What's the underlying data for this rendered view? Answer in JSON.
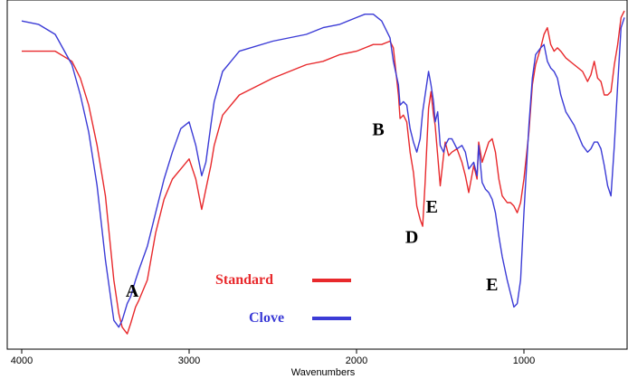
{
  "chart_data": {
    "type": "line",
    "title": "",
    "xlabel": "Wavenumbers",
    "ylabel": "",
    "xlim": [
      4000,
      400
    ],
    "x_reversed": true,
    "ylim": [
      0,
      100
    ],
    "grid": false,
    "legend_position": "bottom-center",
    "x_ticks": [
      {
        "value": 4000,
        "label": "4000"
      },
      {
        "value": 3000,
        "label": "3000"
      },
      {
        "value": 2000,
        "label": "2000"
      },
      {
        "value": 1000,
        "label": "1000"
      }
    ],
    "series": [
      {
        "name": "Standard",
        "color": "#e8292c",
        "x": [
          4000,
          3900,
          3800,
          3700,
          3650,
          3600,
          3550,
          3500,
          3450,
          3420,
          3400,
          3370,
          3350,
          3320,
          3300,
          3250,
          3200,
          3150,
          3100,
          3050,
          3000,
          2960,
          2925,
          2900,
          2870,
          2850,
          2800,
          2700,
          2500,
          2300,
          2200,
          2100,
          2000,
          1950,
          1900,
          1850,
          1800,
          1780,
          1750,
          1740,
          1720,
          1700,
          1680,
          1660,
          1640,
          1620,
          1605,
          1590,
          1570,
          1555,
          1540,
          1530,
          1515,
          1500,
          1480,
          1470,
          1450,
          1430,
          1400,
          1370,
          1350,
          1330,
          1300,
          1280,
          1270,
          1250,
          1230,
          1210,
          1190,
          1170,
          1150,
          1130,
          1100,
          1080,
          1060,
          1040,
          1020,
          1000,
          970,
          950,
          930,
          900,
          880,
          860,
          840,
          820,
          800,
          780,
          750,
          700,
          650,
          620,
          600,
          580,
          560,
          540,
          520,
          500,
          480,
          460,
          440,
          420,
          400
        ],
        "y": [
          88,
          88,
          88,
          85,
          80,
          72,
          60,
          45,
          20,
          10,
          6,
          4,
          7,
          12,
          14,
          20,
          34,
          44,
          50,
          53,
          56,
          50,
          41,
          47,
          54,
          60,
          69,
          75,
          80,
          84,
          85,
          87,
          88,
          89,
          90,
          90,
          91,
          89,
          75,
          68,
          69,
          67,
          58,
          52,
          42,
          38,
          36,
          49,
          71,
          76,
          69,
          66,
          57,
          48,
          57,
          61,
          57,
          58,
          59,
          55,
          51,
          46,
          54,
          50,
          61,
          55,
          58,
          61,
          62,
          58,
          50,
          45,
          43,
          43,
          42,
          40,
          43,
          50,
          64,
          78,
          84,
          89,
          93,
          95,
          90,
          88,
          89,
          88,
          86,
          84,
          82,
          79,
          81,
          85,
          80,
          79,
          75,
          75,
          76,
          84,
          90,
          98,
          100
        ]
      },
      {
        "name": "Clove",
        "color": "#3b3bd6",
        "x": [
          4000,
          3900,
          3800,
          3700,
          3650,
          3600,
          3550,
          3500,
          3450,
          3420,
          3400,
          3370,
          3350,
          3320,
          3300,
          3250,
          3200,
          3150,
          3100,
          3050,
          3000,
          2960,
          2925,
          2900,
          2870,
          2850,
          2800,
          2700,
          2500,
          2300,
          2200,
          2100,
          2000,
          1950,
          1900,
          1850,
          1800,
          1780,
          1750,
          1740,
          1720,
          1700,
          1680,
          1660,
          1640,
          1620,
          1605,
          1590,
          1570,
          1555,
          1540,
          1530,
          1515,
          1500,
          1480,
          1470,
          1450,
          1430,
          1400,
          1370,
          1350,
          1330,
          1300,
          1280,
          1270,
          1250,
          1230,
          1210,
          1190,
          1170,
          1150,
          1130,
          1100,
          1080,
          1060,
          1040,
          1020,
          1000,
          970,
          950,
          930,
          900,
          880,
          860,
          840,
          820,
          800,
          780,
          750,
          700,
          650,
          620,
          600,
          580,
          560,
          540,
          520,
          500,
          480,
          460,
          440,
          420,
          400
        ],
        "y": [
          97,
          96,
          93,
          84,
          75,
          64,
          48,
          26,
          8,
          6,
          8,
          13,
          15,
          20,
          23,
          30,
          40,
          50,
          58,
          65,
          67,
          60,
          51,
          55,
          66,
          73,
          82,
          88,
          91,
          93,
          95,
          96,
          98,
          99,
          99,
          97,
          92,
          85,
          78,
          72,
          73,
          72,
          65,
          61,
          58,
          62,
          70,
          75,
          82,
          78,
          73,
          67,
          70,
          60,
          58,
          60,
          62,
          62,
          59,
          60,
          58,
          53,
          55,
          51,
          60,
          49,
          47,
          46,
          44,
          40,
          33,
          27,
          20,
          16,
          12,
          13,
          20,
          40,
          66,
          80,
          87,
          89,
          90,
          85,
          83,
          82,
          80,
          75,
          70,
          66,
          60,
          58,
          59,
          61,
          61,
          59,
          54,
          48,
          45,
          60,
          78,
          95,
          98
        ]
      }
    ],
    "annotations": [
      {
        "text": "A",
        "x": 3340,
        "y": 15
      },
      {
        "text": "B",
        "x": 1870,
        "y": 63
      },
      {
        "text": "D",
        "x": 1670,
        "y": 31
      },
      {
        "text": "E",
        "x": 1550,
        "y": 40
      },
      {
        "text": "E",
        "x": 1190,
        "y": 17
      }
    ],
    "legend": [
      {
        "label": "Standard",
        "color": "#e8292c"
      },
      {
        "label": "Clove",
        "color": "#3b3bd6"
      }
    ]
  }
}
